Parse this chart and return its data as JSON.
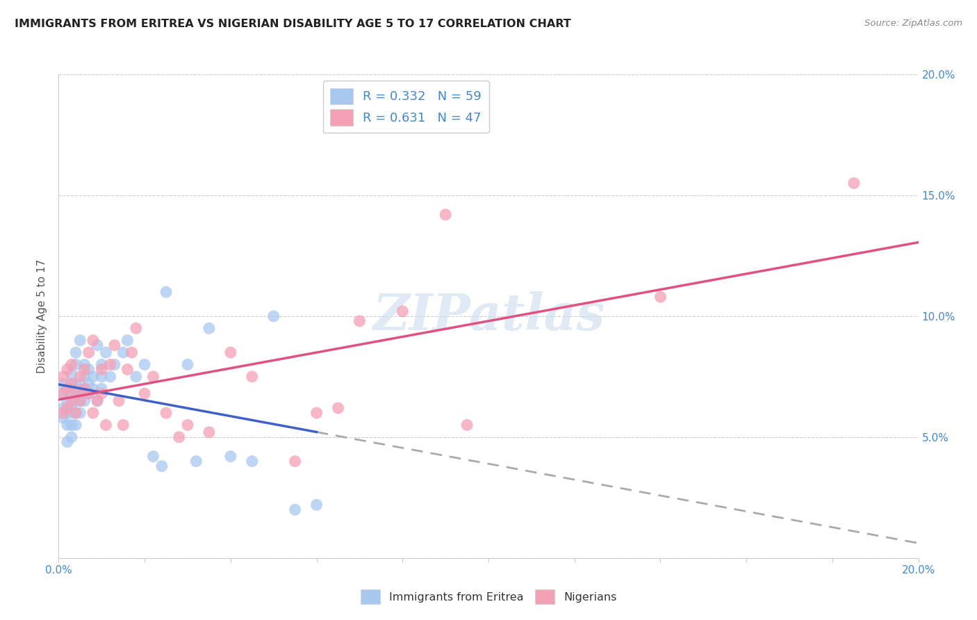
{
  "title": "IMMIGRANTS FROM ERITREA VS NIGERIAN DISABILITY AGE 5 TO 17 CORRELATION CHART",
  "source": "Source: ZipAtlas.com",
  "ylabel": "Disability Age 5 to 17",
  "xlim": [
    0.0,
    0.2
  ],
  "ylim": [
    0.0,
    0.2
  ],
  "legend1_text": "R = 0.332   N = 59",
  "legend2_text": "R = 0.631   N = 47",
  "legend1_color": "#A8C8F0",
  "legend2_color": "#F4A0B5",
  "line_eritrea_color": "#4060C8",
  "line_eritrea_dash_color": "#AAAAAA",
  "line_nigeria_color": "#E05080",
  "watermark": "ZIPatlas",
  "color_eritrea": "#A8C8F0",
  "color_nigeria": "#F4A0B5",
  "eritrea_x": [
    0.001,
    0.001,
    0.001,
    0.001,
    0.002,
    0.002,
    0.002,
    0.002,
    0.002,
    0.003,
    0.003,
    0.003,
    0.003,
    0.003,
    0.003,
    0.003,
    0.004,
    0.004,
    0.004,
    0.004,
    0.004,
    0.004,
    0.004,
    0.005,
    0.005,
    0.005,
    0.005,
    0.006,
    0.006,
    0.006,
    0.006,
    0.007,
    0.007,
    0.007,
    0.008,
    0.008,
    0.009,
    0.009,
    0.01,
    0.01,
    0.01,
    0.011,
    0.012,
    0.013,
    0.015,
    0.016,
    0.018,
    0.02,
    0.022,
    0.024,
    0.025,
    0.03,
    0.032,
    0.035,
    0.04,
    0.045,
    0.05,
    0.055,
    0.06
  ],
  "eritrea_y": [
    0.058,
    0.062,
    0.068,
    0.072,
    0.048,
    0.055,
    0.06,
    0.065,
    0.07,
    0.05,
    0.055,
    0.06,
    0.062,
    0.068,
    0.072,
    0.076,
    0.055,
    0.06,
    0.065,
    0.068,
    0.072,
    0.08,
    0.085,
    0.06,
    0.065,
    0.07,
    0.09,
    0.065,
    0.07,
    0.075,
    0.08,
    0.068,
    0.072,
    0.078,
    0.07,
    0.075,
    0.065,
    0.088,
    0.07,
    0.075,
    0.08,
    0.085,
    0.075,
    0.08,
    0.085,
    0.09,
    0.075,
    0.08,
    0.042,
    0.038,
    0.11,
    0.08,
    0.04,
    0.095,
    0.042,
    0.04,
    0.1,
    0.02,
    0.022
  ],
  "nigeria_x": [
    0.001,
    0.001,
    0.001,
    0.002,
    0.002,
    0.002,
    0.003,
    0.003,
    0.003,
    0.004,
    0.004,
    0.005,
    0.005,
    0.006,
    0.006,
    0.007,
    0.007,
    0.008,
    0.008,
    0.009,
    0.01,
    0.01,
    0.011,
    0.012,
    0.013,
    0.014,
    0.015,
    0.016,
    0.017,
    0.018,
    0.02,
    0.022,
    0.025,
    0.028,
    0.03,
    0.035,
    0.04,
    0.045,
    0.055,
    0.06,
    0.065,
    0.07,
    0.08,
    0.09,
    0.095,
    0.14,
    0.185
  ],
  "nigeria_y": [
    0.06,
    0.068,
    0.075,
    0.062,
    0.07,
    0.078,
    0.065,
    0.072,
    0.08,
    0.06,
    0.068,
    0.065,
    0.075,
    0.07,
    0.078,
    0.068,
    0.085,
    0.06,
    0.09,
    0.065,
    0.068,
    0.078,
    0.055,
    0.08,
    0.088,
    0.065,
    0.055,
    0.078,
    0.085,
    0.095,
    0.068,
    0.075,
    0.06,
    0.05,
    0.055,
    0.052,
    0.085,
    0.075,
    0.04,
    0.06,
    0.062,
    0.098,
    0.102,
    0.142,
    0.055,
    0.108,
    0.155
  ]
}
